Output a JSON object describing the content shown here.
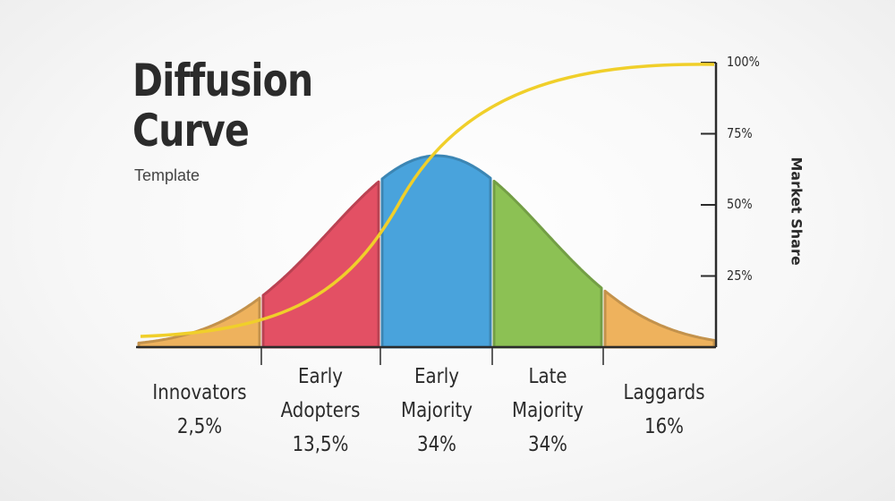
{
  "title_line1": "Diffusion",
  "title_line2": "Curve",
  "subtitle": "Template",
  "chart_data": {
    "type": "area",
    "ylabel": "Market Share",
    "y_ticks": [
      "25%",
      "50%",
      "75%",
      "100%"
    ],
    "ylim": [
      0,
      100
    ],
    "segments": [
      {
        "name": "Innovators",
        "name_line2": "",
        "value_label": "2,5%",
        "value": 2.5,
        "color": "#eeb25d"
      },
      {
        "name": "Early",
        "name_line2": "Adopters",
        "value_label": "13,5%",
        "value": 13.5,
        "color": "#e35064"
      },
      {
        "name": "Early",
        "name_line2": "Majority",
        "value_label": "34%",
        "value": 34,
        "color": "#49a3dc"
      },
      {
        "name": "Late",
        "name_line2": "Majority",
        "value_label": "34%",
        "value": 34,
        "color": "#8cc154"
      },
      {
        "name": "Laggards",
        "name_line2": "",
        "value_label": "16%",
        "value": 16,
        "color": "#eeb25d"
      }
    ],
    "cumulative_curve_color": "#f0cf2a",
    "cumulative_share": [
      0,
      2.5,
      16,
      50,
      84,
      100
    ]
  }
}
